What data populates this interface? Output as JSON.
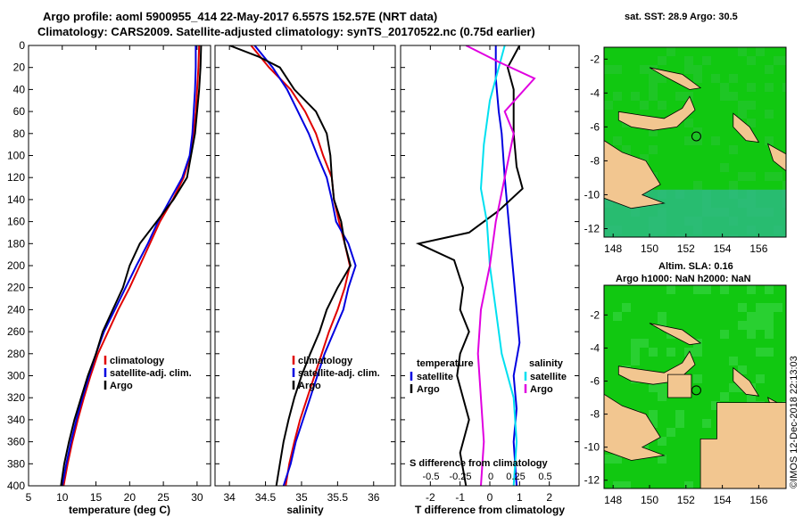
{
  "header": {
    "line1": "Argo profile: aoml 5900955_414 22-May-2017 6.557S 152.57E (NRT data)",
    "line2": "Climatology: CARS2009. Satellite-adjusted climatology: synTS_20170522.nc (0.75d earlier)"
  },
  "credit": "©IMOS 12-Dec-2018 22:13:03",
  "colors": {
    "clim": "#e00000",
    "sat": "#0000e0",
    "argo": "#000000",
    "sat_s": "#00e0f0",
    "clim_s": "#e000e0",
    "ocean": "#11c811",
    "land": "#f2c690",
    "deep": "#30b890"
  },
  "chart_data": [
    {
      "type": "line",
      "id": "temp",
      "xlabel": "temperature (deg C)",
      "xlim": [
        5,
        32
      ],
      "ylim": [
        0,
        400
      ],
      "xticks": [
        5,
        10,
        15,
        20,
        25,
        30
      ],
      "yticks": [
        0,
        20,
        40,
        60,
        80,
        100,
        120,
        140,
        160,
        180,
        200,
        220,
        240,
        260,
        280,
        300,
        320,
        340,
        360,
        380,
        400
      ],
      "legend": [
        "climatology",
        "satellite-adj. clim.",
        "Argo"
      ],
      "series": [
        {
          "name": "climatology",
          "color": "clim",
          "points": [
            [
              30.3,
              0
            ],
            [
              30.2,
              20
            ],
            [
              30.0,
              40
            ],
            [
              29.8,
              60
            ],
            [
              29.5,
              80
            ],
            [
              29.0,
              100
            ],
            [
              28.0,
              120
            ],
            [
              26.4,
              140
            ],
            [
              24.5,
              160
            ],
            [
              23.0,
              180
            ],
            [
              21.5,
              200
            ],
            [
              20.0,
              220
            ],
            [
              18.3,
              240
            ],
            [
              16.8,
              260
            ],
            [
              15.3,
              280
            ],
            [
              14.2,
              300
            ],
            [
              13.2,
              320
            ],
            [
              12.3,
              340
            ],
            [
              11.5,
              360
            ],
            [
              10.8,
              380
            ],
            [
              10.2,
              400
            ]
          ]
        },
        {
          "name": "satellite-adj. clim.",
          "color": "sat",
          "points": [
            [
              29.8,
              0
            ],
            [
              29.8,
              20
            ],
            [
              29.7,
              40
            ],
            [
              29.5,
              60
            ],
            [
              29.3,
              80
            ],
            [
              28.9,
              100
            ],
            [
              27.8,
              120
            ],
            [
              26.0,
              140
            ],
            [
              24.2,
              160
            ],
            [
              22.7,
              180
            ],
            [
              21.0,
              200
            ],
            [
              19.4,
              220
            ],
            [
              17.8,
              240
            ],
            [
              16.2,
              260
            ],
            [
              15.0,
              280
            ],
            [
              14.0,
              300
            ],
            [
              13.0,
              320
            ],
            [
              12.1,
              340
            ],
            [
              11.3,
              360
            ],
            [
              10.6,
              380
            ],
            [
              10.0,
              400
            ]
          ]
        },
        {
          "name": "Argo",
          "color": "argo",
          "points": [
            [
              30.6,
              0
            ],
            [
              30.5,
              20
            ],
            [
              30.3,
              40
            ],
            [
              30.0,
              60
            ],
            [
              29.7,
              80
            ],
            [
              29.1,
              100
            ],
            [
              28.5,
              120
            ],
            [
              26.5,
              140
            ],
            [
              24.0,
              160
            ],
            [
              21.5,
              180
            ],
            [
              20.0,
              200
            ],
            [
              19.0,
              220
            ],
            [
              17.5,
              240
            ],
            [
              16.0,
              260
            ],
            [
              15.0,
              280
            ],
            [
              13.8,
              300
            ],
            [
              12.8,
              320
            ],
            [
              11.8,
              340
            ],
            [
              11.0,
              360
            ],
            [
              10.3,
              380
            ],
            [
              9.8,
              400
            ]
          ]
        }
      ]
    },
    {
      "type": "line",
      "id": "sal",
      "xlabel": "salinity",
      "xlim": [
        33.8,
        36.3
      ],
      "ylim": [
        0,
        400
      ],
      "xticks": [
        34,
        34.5,
        35,
        35.5,
        36
      ],
      "legend": [
        "climatology",
        "satellite-adj. clim.",
        "Argo"
      ],
      "series": [
        {
          "name": "climatology",
          "color": "clim",
          "points": [
            [
              34.3,
              0
            ],
            [
              34.55,
              20
            ],
            [
              34.85,
              40
            ],
            [
              35.05,
              60
            ],
            [
              35.2,
              80
            ],
            [
              35.3,
              100
            ],
            [
              35.42,
              120
            ],
            [
              35.45,
              140
            ],
            [
              35.52,
              160
            ],
            [
              35.6,
              180
            ],
            [
              35.67,
              200
            ],
            [
              35.6,
              220
            ],
            [
              35.5,
              240
            ],
            [
              35.38,
              260
            ],
            [
              35.28,
              280
            ],
            [
              35.18,
              300
            ],
            [
              35.08,
              320
            ],
            [
              34.98,
              340
            ],
            [
              34.9,
              360
            ],
            [
              34.83,
              380
            ],
            [
              34.78,
              400
            ]
          ]
        },
        {
          "name": "satellite-adj. clim.",
          "color": "sat",
          "points": [
            [
              34.35,
              0
            ],
            [
              34.6,
              20
            ],
            [
              34.8,
              40
            ],
            [
              34.95,
              60
            ],
            [
              35.1,
              80
            ],
            [
              35.22,
              100
            ],
            [
              35.35,
              120
            ],
            [
              35.42,
              140
            ],
            [
              35.48,
              160
            ],
            [
              35.65,
              180
            ],
            [
              35.75,
              200
            ],
            [
              35.65,
              220
            ],
            [
              35.58,
              240
            ],
            [
              35.45,
              260
            ],
            [
              35.32,
              280
            ],
            [
              35.22,
              300
            ],
            [
              35.12,
              320
            ],
            [
              35.02,
              340
            ],
            [
              34.92,
              360
            ],
            [
              34.85,
              380
            ],
            [
              34.75,
              400
            ]
          ]
        },
        {
          "name": "Argo",
          "color": "argo",
          "points": [
            [
              34.0,
              0
            ],
            [
              34.4,
              10
            ],
            [
              34.7,
              20
            ],
            [
              34.9,
              40
            ],
            [
              35.2,
              60
            ],
            [
              35.35,
              80
            ],
            [
              35.4,
              100
            ],
            [
              35.42,
              120
            ],
            [
              35.45,
              140
            ],
            [
              35.55,
              160
            ],
            [
              35.6,
              180
            ],
            [
              35.68,
              200
            ],
            [
              35.5,
              220
            ],
            [
              35.35,
              240
            ],
            [
              35.25,
              260
            ],
            [
              35.12,
              280
            ],
            [
              35.0,
              300
            ],
            [
              34.9,
              320
            ],
            [
              34.82,
              340
            ],
            [
              34.75,
              360
            ],
            [
              34.7,
              380
            ],
            [
              34.65,
              400
            ]
          ]
        }
      ]
    },
    {
      "type": "line",
      "id": "diff",
      "xlabel": "T difference from climatology",
      "top_axis_label": "S difference from climatology",
      "xlim": [
        -3,
        3
      ],
      "ylim": [
        0,
        400
      ],
      "xticks": [
        -2,
        -1,
        0,
        1,
        2
      ],
      "top_ticks": [
        -0.5,
        -0.25,
        0,
        0.25,
        0.5
      ],
      "legend_t_title": "temperature",
      "legend_s_title": "salinity",
      "legend_t": [
        "satellite",
        "Argo"
      ],
      "legend_s": [
        "satellite",
        "Argo"
      ],
      "series": [
        {
          "name": "T satellite",
          "color": "sat",
          "points": [
            [
              0.2,
              0
            ],
            [
              0.2,
              30
            ],
            [
              0.3,
              60
            ],
            [
              0.4,
              80
            ],
            [
              0.5,
              120
            ],
            [
              0.6,
              150
            ],
            [
              0.7,
              180
            ],
            [
              0.8,
              210
            ],
            [
              0.9,
              240
            ],
            [
              1.0,
              270
            ],
            [
              0.8,
              300
            ],
            [
              0.9,
              330
            ],
            [
              0.8,
              360
            ],
            [
              0.9,
              400
            ]
          ]
        },
        {
          "name": "T Argo",
          "color": "argo",
          "points": [
            [
              1.0,
              0
            ],
            [
              0.6,
              20
            ],
            [
              0.8,
              40
            ],
            [
              0.8,
              80
            ],
            [
              0.9,
              110
            ],
            [
              1.1,
              130
            ],
            [
              0.3,
              150
            ],
            [
              -0.7,
              170
            ],
            [
              -2.4,
              180
            ],
            [
              -1.2,
              195
            ],
            [
              -0.9,
              220
            ],
            [
              -1.0,
              240
            ],
            [
              -0.7,
              260
            ],
            [
              -1.0,
              280
            ],
            [
              -1.1,
              300
            ],
            [
              -0.9,
              320
            ],
            [
              -0.7,
              340
            ],
            [
              -1.0,
              370
            ],
            [
              -0.8,
              400
            ]
          ]
        },
        {
          "name": "S satellite",
          "color": "sat_s",
          "points": [
            [
              0.5,
              0
            ],
            [
              0.3,
              20
            ],
            [
              0.0,
              50
            ],
            [
              -0.2,
              90
            ],
            [
              -0.3,
              130
            ],
            [
              -0.1,
              160
            ],
            [
              0.0,
              200
            ],
            [
              0.2,
              240
            ],
            [
              0.4,
              280
            ],
            [
              0.8,
              320
            ],
            [
              0.9,
              360
            ],
            [
              0.8,
              400
            ]
          ]
        },
        {
          "name": "S Argo",
          "color": "clim_s",
          "points": [
            [
              -0.8,
              0
            ],
            [
              0.3,
              15
            ],
            [
              1.5,
              30
            ],
            [
              0.5,
              60
            ],
            [
              0.8,
              80
            ],
            [
              0.5,
              120
            ],
            [
              0.2,
              160
            ],
            [
              0.0,
              200
            ],
            [
              -0.3,
              240
            ],
            [
              -0.4,
              280
            ],
            [
              -0.3,
              320
            ],
            [
              -0.2,
              360
            ],
            [
              -0.3,
              400
            ]
          ]
        }
      ]
    },
    {
      "type": "heatmap",
      "id": "sst",
      "title": "sat. SST: 28.9 Argo: 30.5",
      "xlim": [
        147.5,
        157.5
      ],
      "ylim": [
        -12.5,
        -1.3
      ],
      "xticks": [
        148,
        150,
        152,
        154,
        156
      ],
      "yticks": [
        -2,
        -4,
        -6,
        -8,
        -10,
        -12
      ],
      "marker": [
        152.57,
        -6.557
      ]
    },
    {
      "type": "heatmap",
      "id": "sla",
      "title": "Altim. SLA: 0.16",
      "title2": "Argo h1000: NaN h2000: NaN",
      "xlim": [
        147.5,
        157.5
      ],
      "ylim": [
        -12.5,
        -0.2
      ],
      "xticks": [
        148,
        150,
        152,
        154,
        156
      ],
      "yticks": [
        -2,
        -4,
        -6,
        -8,
        -10,
        -12
      ],
      "marker": [
        152.57,
        -6.557
      ]
    }
  ]
}
